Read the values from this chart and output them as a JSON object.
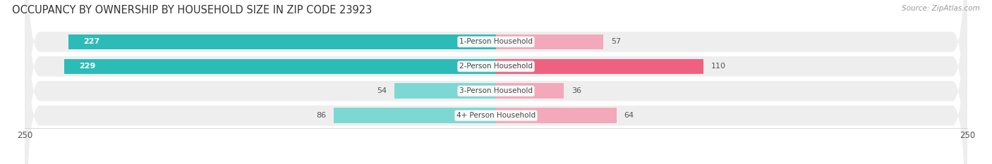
{
  "title": "OCCUPANCY BY OWNERSHIP BY HOUSEHOLD SIZE IN ZIP CODE 23923",
  "source": "Source: ZipAtlas.com",
  "categories": [
    "1-Person Household",
    "2-Person Household",
    "3-Person Household",
    "4+ Person Household"
  ],
  "owner_values": [
    227,
    229,
    54,
    86
  ],
  "renter_values": [
    57,
    110,
    36,
    64
  ],
  "owner_color_strong": "#2BBCB8",
  "owner_color_light": "#7DD8D4",
  "renter_color_strong": "#F06080",
  "renter_color_light": "#F4A8BC",
  "row_bg_color": "#EEEEEE",
  "axis_max": 250,
  "title_fontsize": 10.5,
  "tick_fontsize": 8.5,
  "bar_label_fontsize": 8,
  "category_fontsize": 7.5,
  "legend_fontsize": 8.5,
  "source_fontsize": 7.5,
  "bar_height": 0.62
}
